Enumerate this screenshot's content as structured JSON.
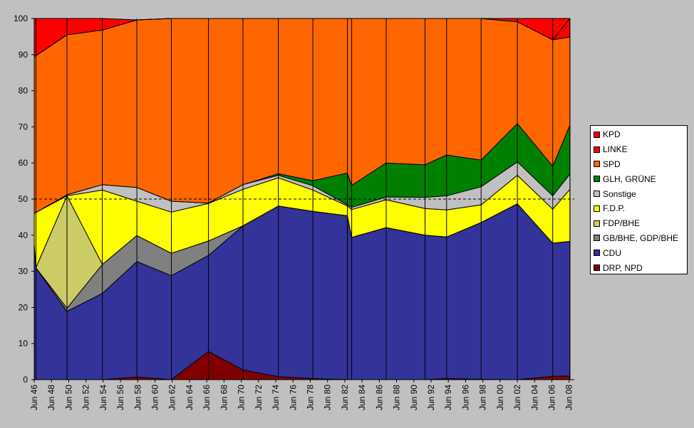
{
  "chart_data": {
    "type": "area",
    "stacked": true,
    "percent": true,
    "ylim": [
      0,
      100
    ],
    "yticks": [
      0,
      10,
      20,
      30,
      40,
      50,
      60,
      70,
      80,
      90,
      100
    ],
    "reference_line": 50,
    "plot_background": "#c0c0c0",
    "xticks": [
      "Jun 46",
      "Jun 48",
      "Jun 50",
      "Jun 52",
      "Jun 54",
      "Jun 56",
      "Jun 58",
      "Jun 60",
      "Jun 62",
      "Jun 64",
      "Jun 66",
      "Jun 68",
      "Jun 70",
      "Jun 72",
      "Jun 74",
      "Jun 76",
      "Jun 78",
      "Jun 80",
      "Jun 82",
      "Jun 84",
      "Jun 86",
      "Jun 88",
      "Jun 90",
      "Jun 92",
      "Jun 94",
      "Jun 96",
      "Jun 98",
      "Jun 00",
      "Jun 02",
      "Jun 04",
      "Jun 06",
      "Jun 08"
    ],
    "x": [
      1946.0,
      1946.2,
      1949.8,
      1953.9,
      1957.9,
      1961.9,
      1966.2,
      1970.2,
      1974.3,
      1978.3,
      1982.3,
      1982.8,
      1986.8,
      1991.3,
      1993.8,
      1997.8,
      2002.0,
      2006.1,
      2008.1
    ],
    "elections": [
      "1946",
      "1946",
      "1949",
      "1953",
      "1957",
      "1961",
      "1966",
      "1970",
      "1974",
      "1978",
      "1982",
      "1982",
      "1986",
      "1991",
      "1993",
      "1997",
      "2001",
      "2004",
      "2008"
    ],
    "series": [
      {
        "name": "DRP, NPD",
        "color": "#800000",
        "values": [
          0,
          0,
          0,
          0,
          0.7,
          0,
          7.8,
          2.7,
          0.8,
          0.3,
          0,
          0,
          0,
          0,
          0.3,
          0.1,
          0,
          0.9,
          1.0
        ]
      },
      {
        "name": "CDU",
        "color": "#333399",
        "values": [
          37.6,
          31.0,
          18.9,
          23.9,
          32.0,
          28.8,
          26.6,
          39.9,
          47.3,
          46.3,
          45.4,
          39.4,
          42.1,
          40.0,
          39.2,
          43.4,
          48.7,
          36.9,
          37.3
        ]
      },
      {
        "name": "GB/BHE, GDP/BHE",
        "color": "#808080",
        "values": [
          0,
          0,
          0.9,
          8.0,
          7.2,
          6.2,
          4.0,
          0,
          0,
          0,
          0,
          0,
          0,
          0,
          0,
          0,
          0,
          0,
          0
        ]
      },
      {
        "name": "FDP/BHE",
        "color": "#cccc66",
        "values": [
          0,
          0,
          31.1,
          0,
          0,
          0,
          0,
          0,
          0,
          0,
          0,
          0,
          0,
          0,
          0,
          0,
          0,
          0,
          0
        ]
      },
      {
        "name": "F.D.P.",
        "color": "#ffff00",
        "values": [
          8.5,
          15.3,
          0,
          20.6,
          9.5,
          11.4,
          10.4,
          10.1,
          7.8,
          5.9,
          2.7,
          7.7,
          7.7,
          7.4,
          7.5,
          4.9,
          7.9,
          9.4,
          14.4
        ]
      },
      {
        "name": "Sonstige",
        "color": "#c0c0c0",
        "values": [
          0,
          0,
          0.3,
          1.5,
          3.8,
          3.0,
          0.1,
          1.3,
          0.7,
          1.2,
          0.3,
          0.6,
          0.8,
          3.1,
          3.9,
          5.0,
          3.7,
          3.7,
          4.2
        ]
      },
      {
        "name": "GLH, GRÜNE",
        "color": "#008000",
        "values": [
          0,
          0,
          0,
          0,
          0,
          0,
          0,
          0,
          0.4,
          1.4,
          8.8,
          6.1,
          9.4,
          9.0,
          11.3,
          7.4,
          10.6,
          8.2,
          13.6
        ]
      },
      {
        "name": "SPD",
        "color": "#ff6600",
        "values": [
          43.4,
          43.4,
          44.3,
          42.8,
          46.4,
          50.6,
          51.1,
          46.0,
          43.0,
          44.9,
          42.8,
          46.2,
          40.0,
          40.5,
          37.8,
          39.2,
          28.2,
          35.0,
          24.4
        ]
      },
      {
        "name": "LINKE",
        "color": "#ff0000",
        "values": [
          0,
          0,
          0,
          0,
          0,
          0,
          0,
          0,
          0,
          0,
          0,
          0,
          0,
          0,
          0,
          0,
          0,
          0,
          5.1
        ]
      },
      {
        "name": "KPD",
        "color": "#ff0000",
        "values": [
          10.5,
          10.3,
          4.5,
          3.2,
          0,
          0,
          0,
          0,
          0,
          0,
          0,
          0,
          0,
          0,
          0,
          0,
          0.9,
          5.9,
          0
        ]
      }
    ],
    "legend_order": [
      "KPD",
      "LINKE",
      "SPD",
      "GLH, GRÜNE",
      "Sonstige",
      "F.D.P.",
      "FDP/BHE",
      "GB/BHE, GDP/BHE",
      "CDU",
      "DRP, NPD"
    ],
    "legend_position": "right"
  }
}
